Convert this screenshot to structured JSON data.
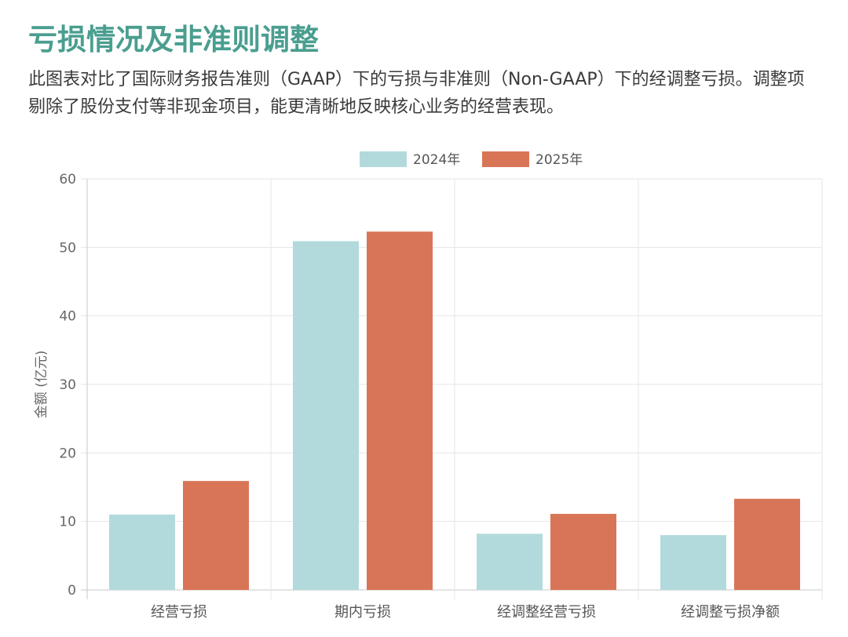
{
  "header": {
    "title": "亏损情况及非准则调整",
    "title_color": "#4a9e8f",
    "description": "此图表对比了国际财务报告准则（GAAP）下的亏损与非准则（Non-GAAP）下的经调整亏损。调整项剔除了股份支付等非现金项目，能更清晰地反映核心业务的经营表现。"
  },
  "chart_data": {
    "type": "bar",
    "title": "",
    "xlabel": "",
    "ylabel": "金额 (亿元)",
    "ylim": [
      0,
      60
    ],
    "yticks": [
      0,
      10,
      20,
      30,
      40,
      50,
      60
    ],
    "grid": true,
    "legend_position": "top-center",
    "categories": [
      "经营亏损",
      "期内亏损",
      "经调整经营亏损",
      "经调整亏损净额"
    ],
    "series": [
      {
        "name": "2024年",
        "color": "#b2dadc",
        "values": [
          11.0,
          50.9,
          8.2,
          8.0
        ]
      },
      {
        "name": "2025年",
        "color": "#d97557",
        "values": [
          15.9,
          52.3,
          11.1,
          13.3
        ]
      }
    ]
  }
}
